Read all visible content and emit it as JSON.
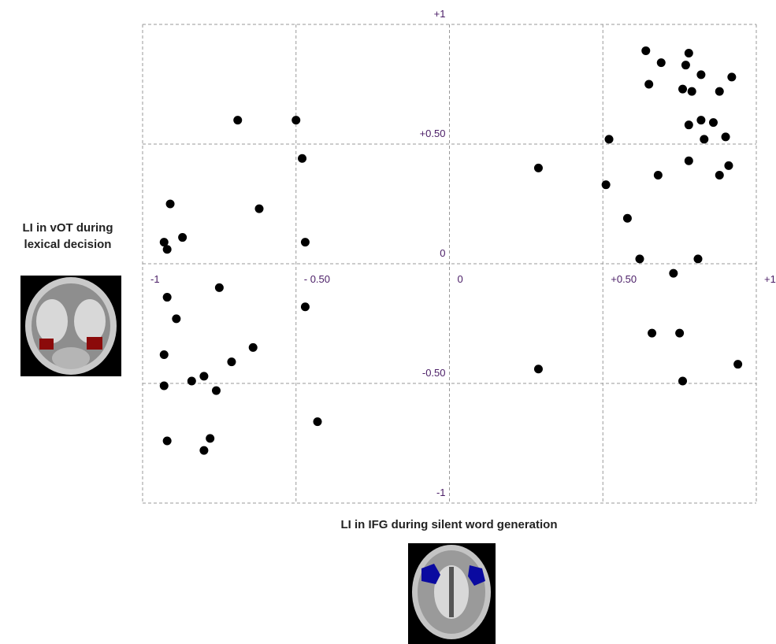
{
  "chart_data": {
    "type": "scatter",
    "xlabel": "LI in IFG during silent word generation",
    "ylabel": [
      "LI in vOT during",
      "lexical decision"
    ],
    "xlim": [
      -1,
      1
    ],
    "ylim": [
      -1,
      1
    ],
    "xticks": [
      -1,
      {
        "value": -0.5,
        "label": "- 0.50"
      },
      0,
      {
        "value": 0.5,
        "label": "+0.50"
      },
      {
        "value": 1,
        "label": "+1"
      }
    ],
    "yticks": [
      -1,
      {
        "value": -0.5,
        "label": "-0.50"
      },
      0,
      {
        "value": 0.5,
        "label": "+0.50"
      },
      {
        "value": 1,
        "label": "+1"
      }
    ],
    "grid": true,
    "color": "#000000",
    "x": [
      -0.69,
      -0.5,
      -0.48,
      -0.91,
      -0.62,
      -0.87,
      -0.93,
      -0.92,
      -0.47,
      0.29,
      0.64,
      0.78,
      0.69,
      0.77,
      0.82,
      0.92,
      0.65,
      0.76,
      0.79,
      0.88,
      0.82,
      0.78,
      0.86,
      0.83,
      0.9,
      0.52,
      0.78,
      0.91,
      0.88,
      0.68,
      0.51,
      0.58,
      0.62,
      0.81,
      0.73,
      -0.75,
      -0.92,
      -0.47,
      -0.89,
      0.66,
      0.75,
      -0.64,
      -0.93,
      -0.71,
      0.94,
      0.29,
      -0.8,
      -0.84,
      0.76,
      -0.93,
      -0.76,
      -0.43,
      -0.78,
      -0.92,
      -0.8
    ],
    "values": [
      0.6,
      0.6,
      0.44,
      0.25,
      0.23,
      0.11,
      0.09,
      0.06,
      0.09,
      0.4,
      0.89,
      0.88,
      0.84,
      0.83,
      0.79,
      0.78,
      0.75,
      0.73,
      0.72,
      0.72,
      0.6,
      0.58,
      0.59,
      0.52,
      0.53,
      0.52,
      0.43,
      0.41,
      0.37,
      0.37,
      0.33,
      0.19,
      0.02,
      0.02,
      -0.04,
      -0.1,
      -0.14,
      -0.18,
      -0.23,
      -0.29,
      -0.29,
      -0.35,
      -0.38,
      -0.41,
      -0.42,
      -0.44,
      -0.47,
      -0.49,
      -0.49,
      -0.51,
      -0.53,
      -0.66,
      -0.73,
      -0.74,
      -0.78
    ]
  }
}
